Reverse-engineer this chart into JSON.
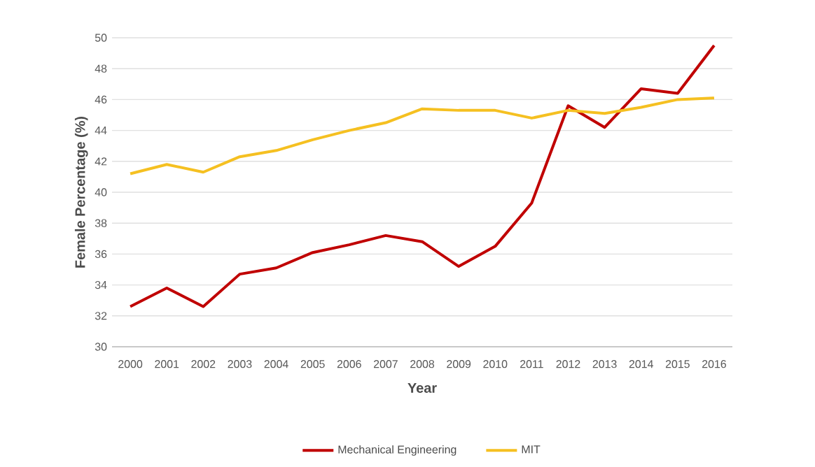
{
  "chart_data": {
    "type": "line",
    "xlabel": "Year",
    "ylabel": "Female Percentage (%)",
    "categories": [
      "2000",
      "2001",
      "2002",
      "2003",
      "2004",
      "2005",
      "2006",
      "2007",
      "2008",
      "2009",
      "2010",
      "2011",
      "2012",
      "2013",
      "2014",
      "2015",
      "2016"
    ],
    "series": [
      {
        "name": "Mechanical Engineering",
        "color": "#c00000",
        "values": [
          32.6,
          33.8,
          32.6,
          34.7,
          35.1,
          36.1,
          36.6,
          37.2,
          36.8,
          35.2,
          36.5,
          39.3,
          45.6,
          44.2,
          46.7,
          46.4,
          49.5
        ]
      },
      {
        "name": "MIT",
        "color": "#f5c021",
        "values": [
          41.2,
          41.8,
          41.3,
          42.3,
          42.7,
          43.4,
          44.0,
          44.5,
          45.4,
          45.3,
          45.3,
          44.8,
          45.3,
          45.1,
          45.5,
          46.0,
          46.1
        ]
      }
    ],
    "ylim": [
      30,
      50
    ],
    "yticks": [
      30,
      32,
      34,
      36,
      38,
      40,
      42,
      44,
      46,
      48,
      50
    ],
    "grid": "y",
    "legend": "bottom",
    "marker": "none",
    "line_style": "solid"
  }
}
